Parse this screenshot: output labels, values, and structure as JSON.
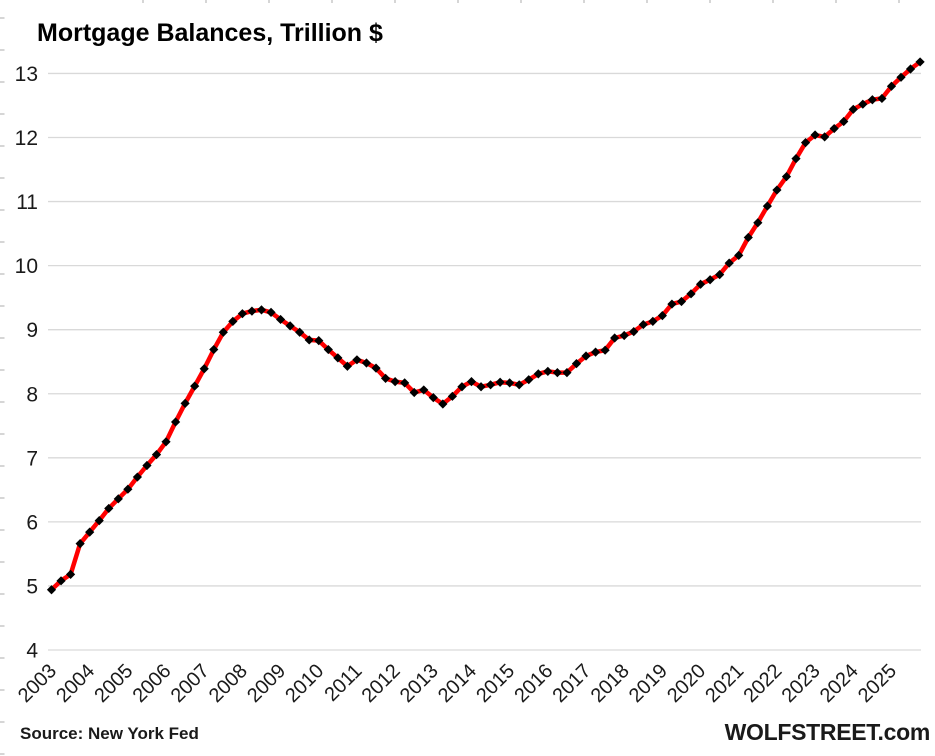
{
  "chart_data": {
    "type": "line",
    "title": "Mortgage Balances, Trillion $",
    "unit": "Trillion $",
    "grid": "horizontal",
    "legend": "none",
    "line_color": "#FF0000",
    "marker_color": "#000000",
    "marker_shape": "diamond",
    "gridline_color": "#D9D9D9",
    "tick_color": "#BFBFBF",
    "text_color": "#1a1a1a",
    "ylim": [
      4,
      13.5
    ],
    "y_ticks": [
      4,
      5,
      6,
      7,
      8,
      9,
      10,
      11,
      12,
      13
    ],
    "x_tick_labels": [
      "2003",
      "2004",
      "2005",
      "2006",
      "2007",
      "2008",
      "2009",
      "2010",
      "2011",
      "2012",
      "2013",
      "2014",
      "2015",
      "2016",
      "2017",
      "2018",
      "2019",
      "2020",
      "2021",
      "2022",
      "2023",
      "2024",
      "2025"
    ],
    "series": [
      {
        "name": "Mortgage balances, trillion $",
        "frequency": "quarterly",
        "start": "2003 Q1",
        "end": "2025 Q4",
        "values": [
          4.94,
          5.08,
          5.18,
          5.66,
          5.84,
          6.02,
          6.21,
          6.36,
          6.51,
          6.7,
          6.88,
          7.05,
          7.25,
          7.56,
          7.85,
          8.12,
          8.39,
          8.69,
          8.96,
          9.13,
          9.25,
          9.29,
          9.31,
          9.27,
          9.16,
          9.06,
          8.96,
          8.84,
          8.83,
          8.69,
          8.56,
          8.43,
          8.53,
          8.48,
          8.4,
          8.24,
          8.19,
          8.17,
          8.02,
          8.06,
          7.94,
          7.84,
          7.96,
          8.11,
          8.19,
          8.11,
          8.14,
          8.18,
          8.17,
          8.14,
          8.22,
          8.31,
          8.35,
          8.33,
          8.33,
          8.47,
          8.59,
          8.65,
          8.68,
          8.87,
          8.91,
          8.97,
          9.08,
          9.13,
          9.22,
          9.4,
          9.44,
          9.56,
          9.71,
          9.78,
          9.86,
          10.04,
          10.16,
          10.44,
          10.67,
          10.93,
          11.18,
          11.39,
          11.67,
          11.92,
          12.04,
          12.01,
          12.14,
          12.25,
          12.44,
          12.52,
          12.59,
          12.61,
          12.8,
          12.94,
          13.07,
          13.18
        ]
      }
    ]
  },
  "footer": {
    "source": "Source: New York Fed",
    "brand": "WOLFSTREET.com"
  }
}
